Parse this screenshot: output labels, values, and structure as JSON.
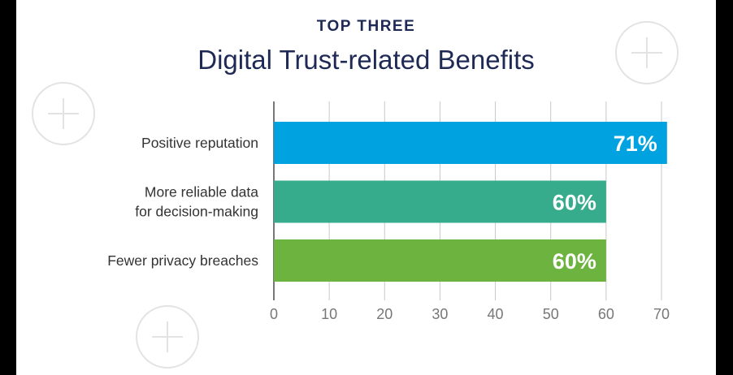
{
  "colors": {
    "title": "#1e2a55",
    "label": "#333333",
    "grid": "#c8c8c8",
    "axis": "#777777",
    "value_text": "#ffffff",
    "deco": "#e3e3e3"
  },
  "decorations": [
    "plus-circle-icon",
    "plus-circle-icon",
    "plus-circle-icon"
  ],
  "chart_data": {
    "type": "bar",
    "orientation": "horizontal",
    "kicker": "TOP THREE",
    "title": "Digital Trust-related Benefits",
    "categories": [
      [
        "Positive reputation"
      ],
      [
        "More reliable data",
        "for decision-making"
      ],
      [
        "Fewer privacy breaches"
      ]
    ],
    "values": [
      71,
      60,
      60
    ],
    "value_labels": [
      "71%",
      "60%",
      "60%"
    ],
    "bar_colors": [
      "#00a3e0",
      "#36ac8c",
      "#6db33f"
    ],
    "xlim": [
      0,
      70
    ],
    "xticks": [
      0,
      10,
      20,
      30,
      40,
      50,
      60,
      70
    ],
    "grid": true,
    "legend": "none"
  }
}
